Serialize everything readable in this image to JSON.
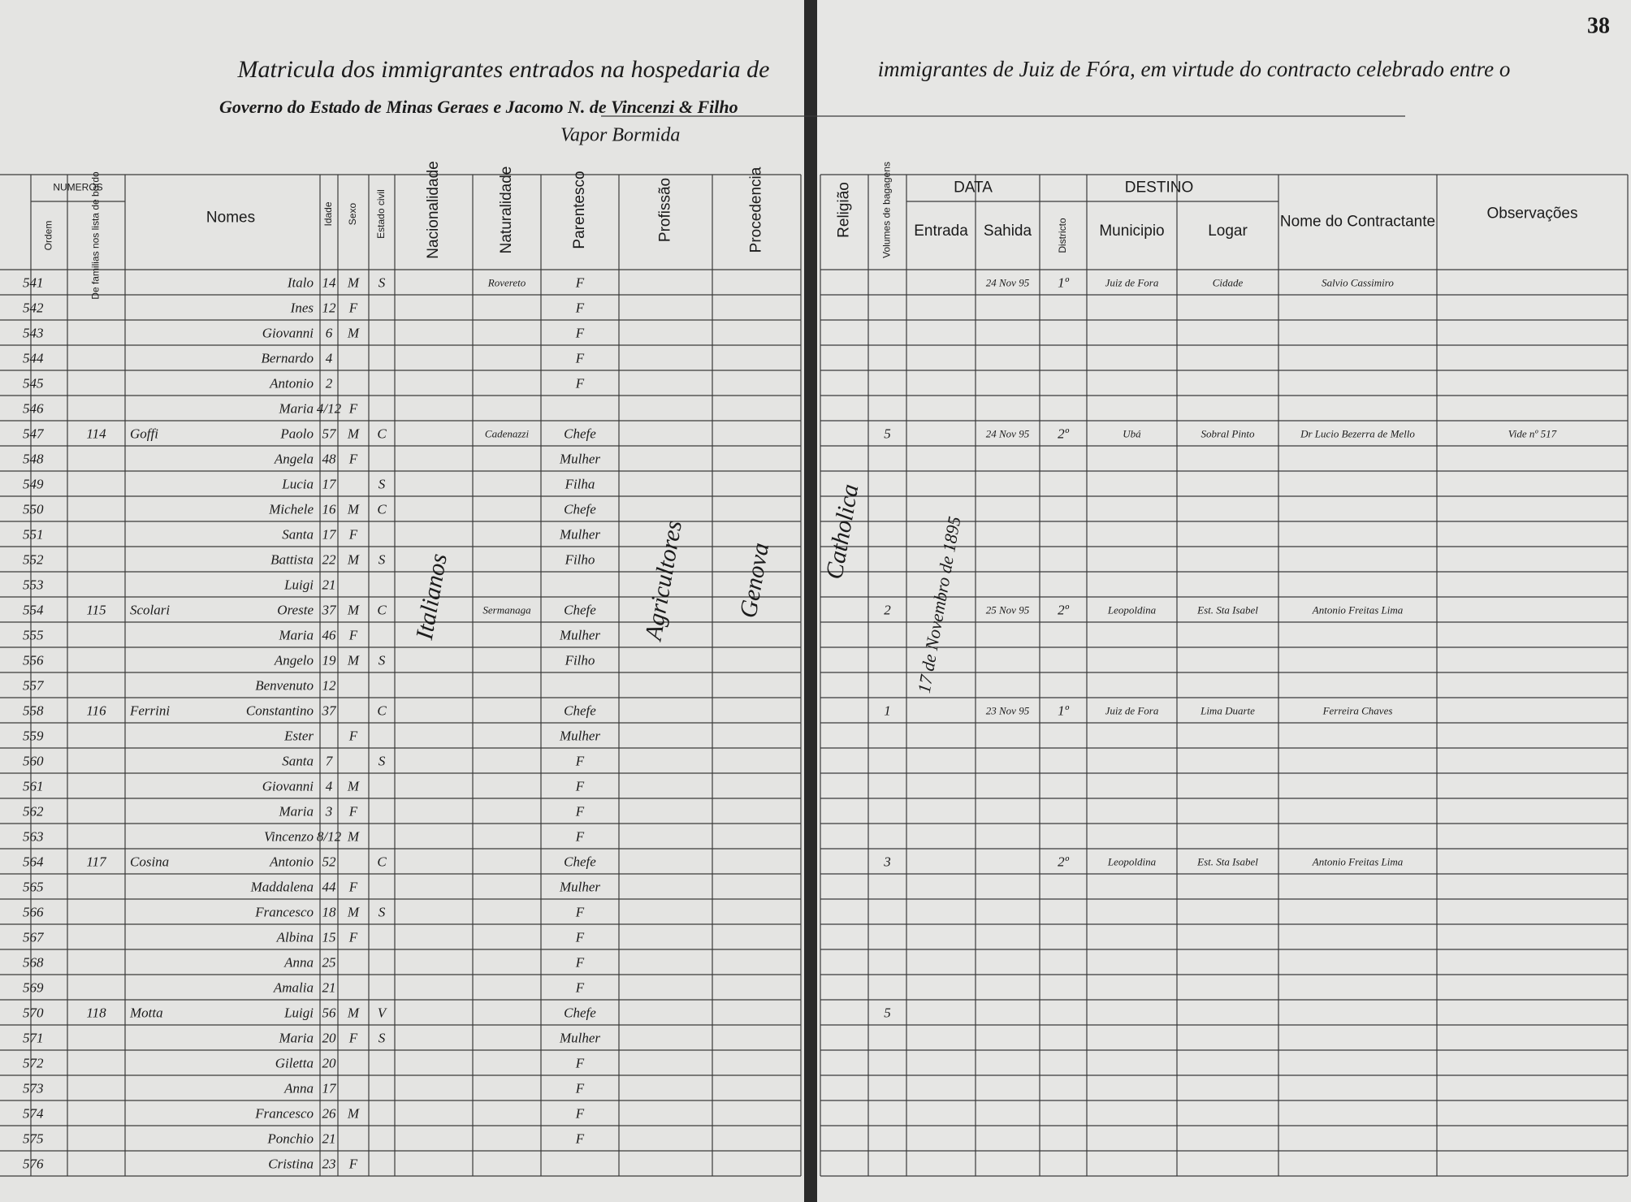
{
  "header": {
    "title_left": "Matricula dos immigrantes entrados na hospedaria de",
    "title_right": "immigrantes de Juiz de Fóra, em virtude do contracto celebrado entre o",
    "line2": "Governo do Estado de Minas Geraes e Jacomo N. de Vincenzi & Filho",
    "line3": "Vapor Bormida",
    "page_number": "38"
  },
  "columns": {
    "numeros": "NUMEROS",
    "ordem": "Ordem",
    "familia": "De familias nos lista de bordo",
    "nomes": "Nomes",
    "idade": "Idade",
    "sexo": "Sexo",
    "estado": "Estado civil",
    "nacionalidade": "Nacionalidade",
    "naturalidade": "Naturalidade",
    "parentesco": "Parentesco",
    "profissao": "Profissão",
    "procedencia": "Procedencia",
    "religiao": "Religião",
    "volumes": "Volumes de bagagens",
    "data": "DATA",
    "entrada": "Entrada",
    "sahida": "Sahida",
    "districto": "Districto",
    "destino": "DESTINO",
    "municipio": "Municipio",
    "logar": "Logar",
    "contractante": "Nome do Contractante",
    "observacoes": "Observações"
  },
  "notes": {
    "nacionalidade": "Italianos",
    "profissao": "Agricultores",
    "procedencia": "Genova",
    "religiao": "Catholica",
    "entrada": "17 de Novembro de 1895"
  },
  "rows": [
    {
      "ordem": 541,
      "nome": "Italo",
      "idade": 14,
      "sexo": "M",
      "estado": "S",
      "naturalidade": "Rovereto",
      "parentesco": "F",
      "sahida": "24 Nov 95",
      "districto": "1º",
      "municipio": "Juiz de Fora",
      "logar": "Cidade",
      "contractante": "Salvio Cassimiro"
    },
    {
      "ordem": 542,
      "nome": "Ines",
      "idade": 12,
      "sexo": "F",
      "parentesco": "F"
    },
    {
      "ordem": 543,
      "nome": "Giovanni",
      "idade": 6,
      "sexo": "M",
      "parentesco": "F"
    },
    {
      "ordem": 544,
      "nome": "Bernardo",
      "idade": 4,
      "parentesco": "F"
    },
    {
      "ordem": 545,
      "nome": "Antonio",
      "idade": 2,
      "parentesco": "F"
    },
    {
      "ordem": 546,
      "nome": "Maria",
      "idade": "4/12",
      "sexo": "F"
    },
    {
      "ordem": 547,
      "familia": 114,
      "apelido": "Goffi",
      "nome": "Paolo",
      "idade": 57,
      "sexo": "M",
      "estado": "C",
      "naturalidade": "Cadenazzi",
      "parentesco": "Chefe",
      "volumes": 5,
      "sahida": "24 Nov 95",
      "districto": "2º",
      "municipio": "Ubá",
      "logar": "Sobral Pinto",
      "contractante": "Dr Lucio Bezerra de Mello",
      "observacoes": "Vide nº 517"
    },
    {
      "ordem": 548,
      "nome": "Angela",
      "idade": 48,
      "sexo": "F",
      "parentesco": "Mulher"
    },
    {
      "ordem": 549,
      "nome": "Lucia",
      "idade": 17,
      "estado": "S",
      "parentesco": "Filha"
    },
    {
      "ordem": 550,
      "nome": "Michele",
      "idade": 16,
      "sexo": "M",
      "estado": "C",
      "parentesco": "Chefe"
    },
    {
      "ordem": 551,
      "nome": "Santa",
      "idade": 17,
      "sexo": "F",
      "parentesco": "Mulher"
    },
    {
      "ordem": 552,
      "nome": "Battista",
      "idade": 22,
      "sexo": "M",
      "estado": "S",
      "parentesco": "Filho"
    },
    {
      "ordem": 553,
      "nome": "Luigi",
      "idade": 21
    },
    {
      "ordem": 554,
      "familia": 115,
      "apelido": "Scolari",
      "nome": "Oreste",
      "idade": 37,
      "sexo": "M",
      "estado": "C",
      "naturalidade": "Sermanaga",
      "parentesco": "Chefe",
      "volumes": 2,
      "sahida": "25 Nov 95",
      "districto": "2º",
      "municipio": "Leopoldina",
      "logar": "Est. Sta Isabel",
      "contractante": "Antonio Freitas Lima"
    },
    {
      "ordem": 555,
      "nome": "Maria",
      "idade": 46,
      "sexo": "F",
      "parentesco": "Mulher"
    },
    {
      "ordem": 556,
      "nome": "Angelo",
      "idade": 19,
      "sexo": "M",
      "estado": "S",
      "parentesco": "Filho"
    },
    {
      "ordem": 557,
      "nome": "Benvenuto",
      "idade": 12
    },
    {
      "ordem": 558,
      "familia": 116,
      "apelido": "Ferrini",
      "nome": "Constantino",
      "idade": 37,
      "estado": "C",
      "parentesco": "Chefe",
      "volumes": 1,
      "sahida": "23 Nov 95",
      "districto": "1º",
      "municipio": "Juiz de Fora",
      "logar": "Lima Duarte",
      "contractante": "Ferreira Chaves"
    },
    {
      "ordem": 559,
      "nome": "Ester",
      "sexo": "F",
      "parentesco": "Mulher"
    },
    {
      "ordem": 560,
      "nome": "Santa",
      "idade": 7,
      "estado": "S",
      "parentesco": "F"
    },
    {
      "ordem": 561,
      "nome": "Giovanni",
      "idade": 4,
      "sexo": "M",
      "parentesco": "F"
    },
    {
      "ordem": 562,
      "nome": "Maria",
      "idade": 3,
      "sexo": "F",
      "parentesco": "F"
    },
    {
      "ordem": 563,
      "nome": "Vincenzo",
      "idade": "8/12",
      "sexo": "M",
      "parentesco": "F"
    },
    {
      "ordem": 564,
      "familia": 117,
      "apelido": "Cosina",
      "nome": "Antonio",
      "idade": 52,
      "estado": "C",
      "parentesco": "Chefe",
      "volumes": 3,
      "districto": "2º",
      "municipio": "Leopoldina",
      "logar": "Est. Sta Isabel",
      "contractante": "Antonio Freitas Lima"
    },
    {
      "ordem": 565,
      "nome": "Maddalena",
      "idade": 44,
      "sexo": "F",
      "parentesco": "Mulher"
    },
    {
      "ordem": 566,
      "nome": "Francesco",
      "idade": 18,
      "sexo": "M",
      "estado": "S",
      "parentesco": "F"
    },
    {
      "ordem": 567,
      "nome": "Albina",
      "idade": 15,
      "sexo": "F",
      "parentesco": "F"
    },
    {
      "ordem": 568,
      "nome": "Anna",
      "idade": 25,
      "parentesco": "F"
    },
    {
      "ordem": 569,
      "nome": "Amalia",
      "idade": 21,
      "parentesco": "F"
    },
    {
      "ordem": 570,
      "familia": 118,
      "apelido": "Motta",
      "nome": "Luigi",
      "idade": 56,
      "sexo": "M",
      "estado": "V",
      "parentesco": "Chefe",
      "volumes": 5
    },
    {
      "ordem": 571,
      "nome": "Maria",
      "idade": 20,
      "sexo": "F",
      "estado": "S",
      "parentesco": "Mulher"
    },
    {
      "ordem": 572,
      "nome": "Giletta",
      "idade": 20,
      "parentesco": "F"
    },
    {
      "ordem": 573,
      "nome": "Anna",
      "idade": 17,
      "parentesco": "F"
    },
    {
      "ordem": 574,
      "nome": "Francesco",
      "idade": 26,
      "sexo": "M",
      "parentesco": "F"
    },
    {
      "ordem": 575,
      "nome": "Ponchio",
      "idade": 21,
      "parentesco": "F"
    },
    {
      "ordem": 576,
      "nome": "Cristina",
      "idade": 23,
      "sexo": "F"
    }
  ]
}
